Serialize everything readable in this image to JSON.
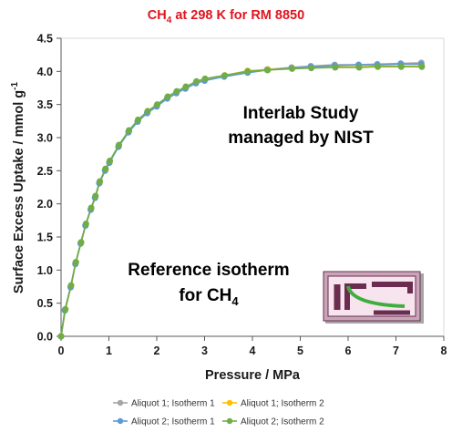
{
  "chart_data": {
    "type": "line",
    "title": {
      "main": "CH",
      "sub": "4",
      "rest": " at 298 K for RM 8850"
    },
    "xlabel": "Pressure  / MPa",
    "ylabel": {
      "main": "Surface Excess Uptake / mmol g",
      "sup": "-1"
    },
    "xlim": [
      0,
      8
    ],
    "ylim": [
      0,
      4.5
    ],
    "xticks": [
      "0",
      "1",
      "2",
      "3",
      "4",
      "5",
      "6",
      "7",
      "8"
    ],
    "yticks": [
      "0.0",
      "0.5",
      "1.0",
      "1.5",
      "2.0",
      "2.5",
      "3.0",
      "3.5",
      "4.0",
      "4.5"
    ],
    "grid": false,
    "legend_position": "bottom",
    "annotations": {
      "interlab_line1": "Interlab Study",
      "interlab_line2": "managed by NIST",
      "reference_line1": "Reference isotherm",
      "reference_line2_main": "for CH",
      "reference_line2_sub": "4"
    },
    "logo": "nist-logo-icon",
    "series": [
      {
        "name": "Aliquot 1; Isotherm 1",
        "color": "#a6a6a6",
        "points": [
          [
            0,
            0
          ],
          [
            0.08,
            0.4
          ],
          [
            0.2,
            0.75
          ],
          [
            0.3,
            1.1
          ],
          [
            0.41,
            1.41
          ],
          [
            0.51,
            1.68
          ],
          [
            0.62,
            1.92
          ],
          [
            0.71,
            2.1
          ],
          [
            0.8,
            2.32
          ],
          [
            0.92,
            2.51
          ],
          [
            1.01,
            2.63
          ],
          [
            1.2,
            2.87
          ],
          [
            1.41,
            3.09
          ],
          [
            1.6,
            3.25
          ],
          [
            1.8,
            3.38
          ],
          [
            2.0,
            3.48
          ],
          [
            2.22,
            3.6
          ],
          [
            2.41,
            3.68
          ],
          [
            2.6,
            3.75
          ],
          [
            2.82,
            3.83
          ],
          [
            3.0,
            3.87
          ],
          [
            3.41,
            3.93
          ],
          [
            3.9,
            4.0
          ],
          [
            4.31,
            4.03
          ],
          [
            4.82,
            4.06
          ],
          [
            5.22,
            4.08
          ],
          [
            5.72,
            4.1
          ],
          [
            6.22,
            4.1
          ],
          [
            6.61,
            4.11
          ],
          [
            7.1,
            4.12
          ],
          [
            7.53,
            4.13
          ]
        ]
      },
      {
        "name": "Aliquot 1; Isotherm 2",
        "color": "#ffc000",
        "points": [
          [
            0,
            0
          ],
          [
            0.09,
            0.4
          ],
          [
            0.21,
            0.76
          ],
          [
            0.31,
            1.12
          ],
          [
            0.42,
            1.42
          ],
          [
            0.52,
            1.69
          ],
          [
            0.63,
            1.93
          ],
          [
            0.72,
            2.11
          ],
          [
            0.81,
            2.33
          ],
          [
            0.93,
            2.52
          ],
          [
            1.02,
            2.64
          ],
          [
            1.21,
            2.88
          ],
          [
            1.42,
            3.1
          ],
          [
            1.61,
            3.26
          ],
          [
            1.81,
            3.39
          ],
          [
            2.01,
            3.49
          ],
          [
            2.23,
            3.61
          ],
          [
            2.42,
            3.69
          ],
          [
            2.61,
            3.76
          ],
          [
            2.83,
            3.84
          ],
          [
            3.01,
            3.88
          ],
          [
            3.42,
            3.94
          ],
          [
            3.9,
            4.01
          ],
          [
            4.32,
            4.03
          ],
          [
            4.83,
            4.05
          ],
          [
            5.23,
            4.06
          ],
          [
            5.73,
            4.07
          ],
          [
            6.23,
            4.07
          ],
          [
            6.62,
            4.08
          ],
          [
            7.11,
            4.08
          ],
          [
            7.54,
            4.08
          ]
        ]
      },
      {
        "name": "Aliquot 2; Isotherm 1",
        "color": "#5b9bd5",
        "points": [
          [
            0,
            0
          ],
          [
            0.08,
            0.39
          ],
          [
            0.2,
            0.74
          ],
          [
            0.3,
            1.09
          ],
          [
            0.41,
            1.4
          ],
          [
            0.51,
            1.67
          ],
          [
            0.62,
            1.91
          ],
          [
            0.71,
            2.09
          ],
          [
            0.8,
            2.31
          ],
          [
            0.92,
            2.5
          ],
          [
            1.01,
            2.62
          ],
          [
            1.2,
            2.86
          ],
          [
            1.41,
            3.08
          ],
          [
            1.6,
            3.24
          ],
          [
            1.8,
            3.37
          ],
          [
            2.0,
            3.47
          ],
          [
            2.22,
            3.59
          ],
          [
            2.41,
            3.67
          ],
          [
            2.6,
            3.74
          ],
          [
            2.82,
            3.82
          ],
          [
            3.0,
            3.86
          ],
          [
            3.41,
            3.92
          ],
          [
            3.9,
            3.98
          ],
          [
            4.31,
            4.02
          ],
          [
            4.82,
            4.05
          ],
          [
            5.22,
            4.07
          ],
          [
            5.72,
            4.09
          ],
          [
            6.22,
            4.1
          ],
          [
            6.61,
            4.1
          ],
          [
            7.1,
            4.11
          ],
          [
            7.53,
            4.11
          ]
        ]
      },
      {
        "name": "Aliquot 2; Isotherm 2",
        "color": "#70ad47",
        "points": [
          [
            0,
            0
          ],
          [
            0.09,
            0.41
          ],
          [
            0.21,
            0.77
          ],
          [
            0.31,
            1.12
          ],
          [
            0.42,
            1.42
          ],
          [
            0.52,
            1.7
          ],
          [
            0.63,
            1.94
          ],
          [
            0.72,
            2.12
          ],
          [
            0.81,
            2.34
          ],
          [
            0.93,
            2.53
          ],
          [
            1.02,
            2.65
          ],
          [
            1.21,
            2.89
          ],
          [
            1.42,
            3.11
          ],
          [
            1.61,
            3.27
          ],
          [
            1.81,
            3.4
          ],
          [
            2.01,
            3.5
          ],
          [
            2.23,
            3.62
          ],
          [
            2.42,
            3.7
          ],
          [
            2.61,
            3.77
          ],
          [
            2.83,
            3.85
          ],
          [
            3.01,
            3.89
          ],
          [
            3.42,
            3.94
          ],
          [
            3.9,
            4.0
          ],
          [
            4.32,
            4.02
          ],
          [
            4.83,
            4.04
          ],
          [
            5.23,
            4.05
          ],
          [
            5.73,
            4.06
          ],
          [
            6.23,
            4.06
          ],
          [
            6.62,
            4.07
          ],
          [
            7.11,
            4.07
          ],
          [
            7.54,
            4.07
          ]
        ]
      }
    ]
  }
}
